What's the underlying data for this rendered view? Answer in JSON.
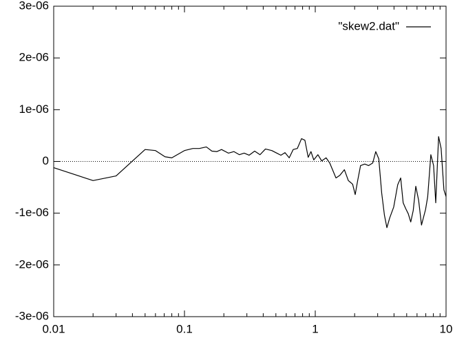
{
  "chart_data": {
    "type": "line",
    "xscale": "log",
    "xlim": [
      0.01,
      10
    ],
    "xticks": [
      0.01,
      0.1,
      1,
      10
    ],
    "ylim": [
      -3e-06,
      3e-06
    ],
    "yticks": [
      {
        "value": -3e-06,
        "label": "-3e-06"
      },
      {
        "value": -2e-06,
        "label": "-2e-06"
      },
      {
        "value": -1e-06,
        "label": "-1e-06"
      },
      0,
      {
        "value": 1e-06,
        "label": "1e-06"
      },
      {
        "value": 2e-06,
        "label": "2e-06"
      },
      {
        "value": 3e-06,
        "label": "3e-06"
      }
    ],
    "zeroaxis": true,
    "legend": "top-right",
    "series": [
      {
        "name": "\"skew2.dat\"",
        "color": "#000000",
        "x": [
          0.01,
          0.02,
          0.03,
          0.05,
          0.06,
          0.071,
          0.08,
          0.088,
          0.1,
          0.116,
          0.13,
          0.147,
          0.162,
          0.177,
          0.192,
          0.217,
          0.239,
          0.263,
          0.286,
          0.312,
          0.344,
          0.378,
          0.416,
          0.465,
          0.508,
          0.546,
          0.587,
          0.632,
          0.678,
          0.729,
          0.785,
          0.833,
          0.883,
          0.927,
          0.974,
          1.047,
          1.12,
          1.21,
          1.29,
          1.35,
          1.44,
          1.54,
          1.67,
          1.79,
          1.93,
          2.02,
          2.11,
          2.22,
          2.39,
          2.56,
          2.75,
          2.9,
          3.06,
          3.22,
          3.38,
          3.53,
          3.71,
          3.98,
          4.27,
          4.5,
          4.7,
          4.91,
          5.14,
          5.37,
          5.61,
          5.87,
          6.17,
          6.49,
          6.97,
          7.24,
          7.65,
          8.03,
          8.34,
          8.77,
          9.17,
          9.63,
          10
        ],
        "values": [
          -1.2e-07,
          -3.7e-07,
          -2.8e-07,
          2.3e-07,
          2.1e-07,
          9e-08,
          7e-08,
          1.3e-07,
          2.1e-07,
          2.5e-07,
          2.5e-07,
          2.8e-07,
          2e-07,
          1.9e-07,
          2.3e-07,
          1.6e-07,
          1.9e-07,
          1.3e-07,
          1.6e-07,
          1.2e-07,
          2e-07,
          1.3e-07,
          2.4e-07,
          2.1e-07,
          1.6e-07,
          1.2e-07,
          1.7e-07,
          7e-08,
          2.3e-07,
          2.5e-07,
          4.4e-07,
          4.1e-07,
          8e-08,
          1.9e-07,
          3e-08,
          1.3e-07,
          1e-08,
          7e-08,
          -3e-08,
          -1.5e-07,
          -3.2e-07,
          -2.7e-07,
          -1.6e-07,
          -3.7e-07,
          -4.4e-07,
          -6.4e-07,
          -3.7e-07,
          -8e-08,
          -5e-08,
          -8e-08,
          -3e-08,
          1.9e-07,
          5e-08,
          -6.1e-07,
          -1.04e-06,
          -1.28e-06,
          -1.09e-06,
          -8.8e-07,
          -4.5e-07,
          -3.2e-07,
          -8e-07,
          -9.1e-07,
          -1.01e-06,
          -1.17e-06,
          -9.5e-07,
          -4.8e-07,
          -7.5e-07,
          -1.23e-06,
          -9.3e-07,
          -6.8e-07,
          1.3e-07,
          -8e-08,
          -8e-07,
          4.8e-07,
          2.5e-07,
          -5.5e-07,
          -6.8e-07
        ]
      }
    ]
  }
}
